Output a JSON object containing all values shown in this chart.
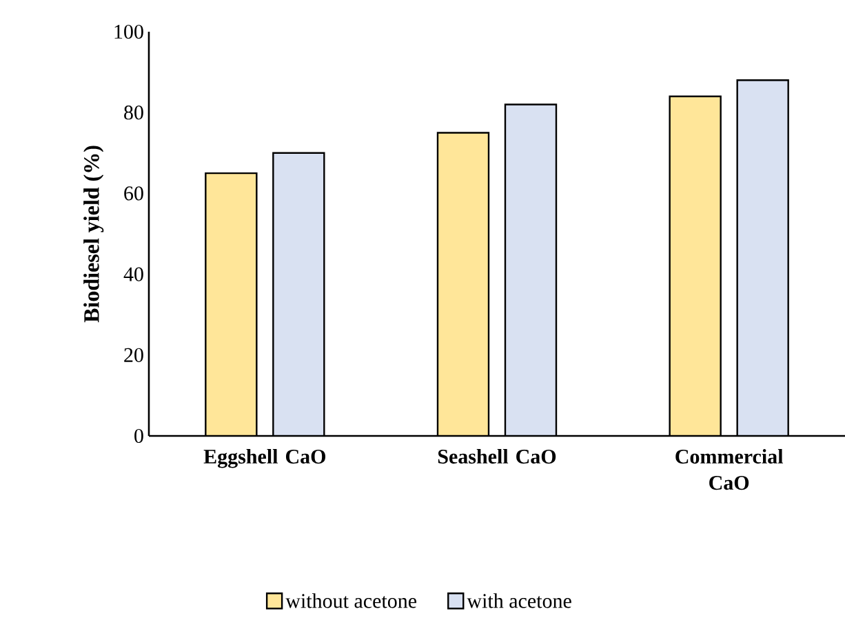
{
  "chart_data": {
    "type": "bar",
    "ylabel": "Biodiesel yield (%)",
    "categories": [
      "Eggshell CaO",
      "Seashell CaO",
      "Commercial CaO"
    ],
    "series": [
      {
        "name": "without acetone",
        "color": "#ffe699",
        "values": [
          65,
          75,
          84
        ]
      },
      {
        "name": "with acetone",
        "color": "#d9e1f2",
        "values": [
          70,
          82,
          88
        ]
      }
    ],
    "ylim": [
      0,
      100
    ],
    "yticks": [
      0,
      20,
      40,
      60,
      80,
      100
    ],
    "grid": false,
    "legend": "bottom"
  }
}
